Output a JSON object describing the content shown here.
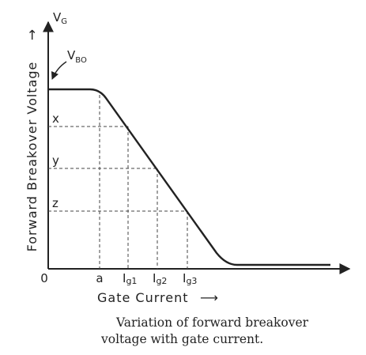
{
  "axes": {
    "y_label": "Forward Breakover Voltage",
    "y_arrow": "→",
    "y_top_label": "V",
    "y_top_sub": "G",
    "x_label": "Gate Current",
    "x_arrow": "⟶",
    "origin": "0"
  },
  "curve": {
    "label": "V",
    "label_sub": "BO"
  },
  "levels": [
    {
      "label": "x"
    },
    {
      "label": "y"
    },
    {
      "label": "z"
    }
  ],
  "x_ticks": [
    {
      "label": "a",
      "sub": ""
    },
    {
      "label": "I",
      "sub": "g1"
    },
    {
      "label": "I",
      "sub": "g2"
    },
    {
      "label": "I",
      "sub": "g3"
    }
  ],
  "caption": {
    "line1": "Variation of forward breakover",
    "line2": "voltage with gate current."
  },
  "colors": {
    "ink": "#222222",
    "background": "#ffffff"
  }
}
